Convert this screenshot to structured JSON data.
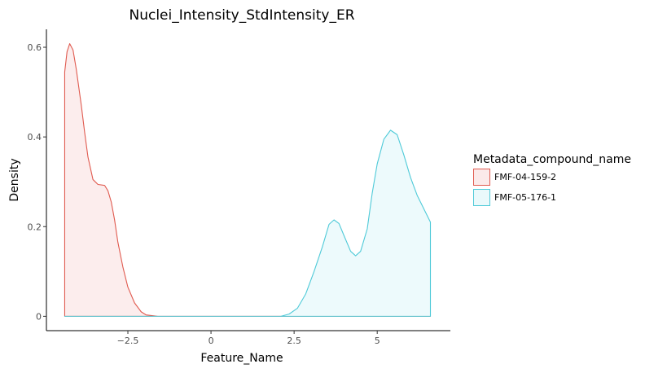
{
  "chart_data": {
    "type": "area",
    "title": "Nuclei_Intensity_StdIntensity_ER",
    "xlabel": "Feature_Name",
    "ylabel": "Density",
    "xlim": [
      -4.95,
      7.2
    ],
    "ylim": [
      -0.032,
      0.64
    ],
    "x_ticks": [
      -2.5,
      0,
      2.5,
      5
    ],
    "x_tick_labels": [
      "−2.5",
      "0",
      "2.5",
      "5"
    ],
    "y_ticks": [
      0,
      0.2,
      0.4,
      0.6
    ],
    "y_tick_labels": [
      "0",
      "0.2",
      "0.4",
      "0.6"
    ],
    "grid": false,
    "legend": {
      "title": "Metadata_compound_name",
      "position": "right"
    },
    "series": [
      {
        "name": "FMF-04-159-2",
        "line_color": "#e05a4f",
        "fill_color": "#fbeaea",
        "points": [
          [
            -4.4,
            0.545
          ],
          [
            -4.33,
            0.59
          ],
          [
            -4.25,
            0.608
          ],
          [
            -4.15,
            0.594
          ],
          [
            -4.05,
            0.55
          ],
          [
            -3.9,
            0.47
          ],
          [
            -3.8,
            0.41
          ],
          [
            -3.7,
            0.355
          ],
          [
            -3.55,
            0.305
          ],
          [
            -3.4,
            0.294
          ],
          [
            -3.2,
            0.292
          ],
          [
            -3.1,
            0.28
          ],
          [
            -3.0,
            0.255
          ],
          [
            -2.9,
            0.215
          ],
          [
            -2.8,
            0.165
          ],
          [
            -2.65,
            0.11
          ],
          [
            -2.5,
            0.065
          ],
          [
            -2.3,
            0.03
          ],
          [
            -2.1,
            0.01
          ],
          [
            -1.95,
            0.003
          ],
          [
            -1.6,
            0.0
          ],
          [
            6.6,
            0.0
          ]
        ]
      },
      {
        "name": "FMF-05-176-1",
        "line_color": "#4fcad8",
        "fill_color": "#eaf9fb",
        "points": [
          [
            -4.4,
            0.0
          ],
          [
            2.1,
            0.0
          ],
          [
            2.35,
            0.005
          ],
          [
            2.6,
            0.018
          ],
          [
            2.85,
            0.05
          ],
          [
            3.1,
            0.1
          ],
          [
            3.35,
            0.155
          ],
          [
            3.55,
            0.205
          ],
          [
            3.7,
            0.215
          ],
          [
            3.85,
            0.207
          ],
          [
            4.0,
            0.18
          ],
          [
            4.2,
            0.145
          ],
          [
            4.35,
            0.135
          ],
          [
            4.5,
            0.145
          ],
          [
            4.7,
            0.195
          ],
          [
            4.85,
            0.275
          ],
          [
            5.0,
            0.34
          ],
          [
            5.2,
            0.395
          ],
          [
            5.4,
            0.415
          ],
          [
            5.6,
            0.405
          ],
          [
            5.8,
            0.36
          ],
          [
            6.0,
            0.31
          ],
          [
            6.2,
            0.27
          ],
          [
            6.4,
            0.24
          ],
          [
            6.6,
            0.21
          ],
          [
            6.6,
            0.0
          ]
        ]
      }
    ]
  }
}
